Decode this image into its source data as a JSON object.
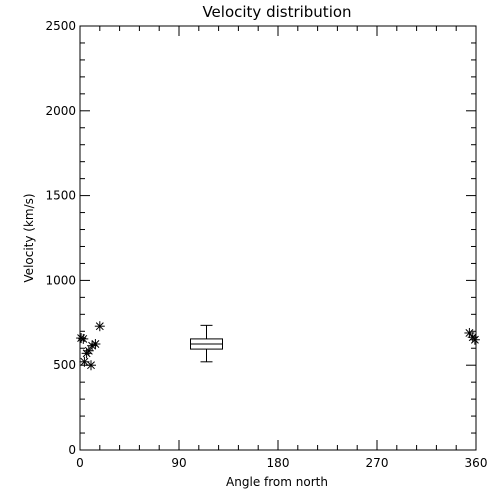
{
  "chart_data": {
    "type": "scatter",
    "title": "Velocity distribution",
    "xlabel": "Angle from north",
    "ylabel": "Velocity (km/s)",
    "xlim": [
      0,
      360
    ],
    "ylim": [
      0,
      2500
    ],
    "x_ticks": [
      0,
      90,
      180,
      270,
      360
    ],
    "y_ticks": [
      0,
      500,
      1000,
      1500,
      2000,
      2500
    ],
    "grid": false,
    "marker": "asterisk",
    "points": [
      {
        "x": 1,
        "y": 660
      },
      {
        "x": 3,
        "y": 655
      },
      {
        "x": 4,
        "y": 520
      },
      {
        "x": 6,
        "y": 570
      },
      {
        "x": 8,
        "y": 585
      },
      {
        "x": 10,
        "y": 500
      },
      {
        "x": 11,
        "y": 615
      },
      {
        "x": 14,
        "y": 625
      },
      {
        "x": 18,
        "y": 730
      },
      {
        "x": 354,
        "y": 690
      },
      {
        "x": 357,
        "y": 665
      },
      {
        "x": 359,
        "y": 650
      }
    ],
    "boxplot": {
      "x": 115,
      "min": 520,
      "q1": 595,
      "median": 625,
      "q3": 655,
      "max": 735
    }
  }
}
